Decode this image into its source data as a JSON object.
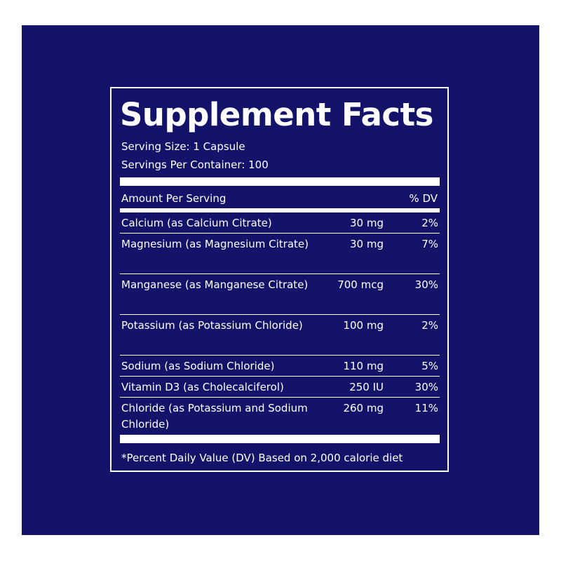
{
  "colors": {
    "background": "#ffffff",
    "panel": "#13136a",
    "text": "#ffffff"
  },
  "label": {
    "title": "Supplement Facts",
    "serving_size": "Serving Size: 1 Capsule",
    "servings_per_container": "Servings Per Container: 100",
    "amount_header": "Amount Per Serving",
    "dv_header": "% DV",
    "rows": [
      {
        "name": "Calcium (as Calcium Citrate)",
        "amount": "30 mg",
        "dv": "2%"
      },
      {
        "name": "Magnesium (as Magnesium Citrate)",
        "amount": "30 mg",
        "dv": "7%"
      },
      {
        "name": "Manganese (as Manganese Citrate)",
        "amount": "700 mcg",
        "dv": "30%"
      },
      {
        "name": "Potassium (as Potassium Chloride)",
        "amount": "100 mg",
        "dv": "2%"
      },
      {
        "name": "Sodium (as Sodium Chloride)",
        "amount": "110 mg",
        "dv": "5%"
      },
      {
        "name": "Vitamin D3 (as Cholecalciferol)",
        "amount": "250 IU",
        "dv": "30%"
      },
      {
        "name": "Chloride (as Potassium and Sodium Chloride)",
        "amount": "260 mg",
        "dv": "11%"
      }
    ],
    "footnote": "*Percent Daily Value (DV) Based on 2,000 calorie diet"
  }
}
